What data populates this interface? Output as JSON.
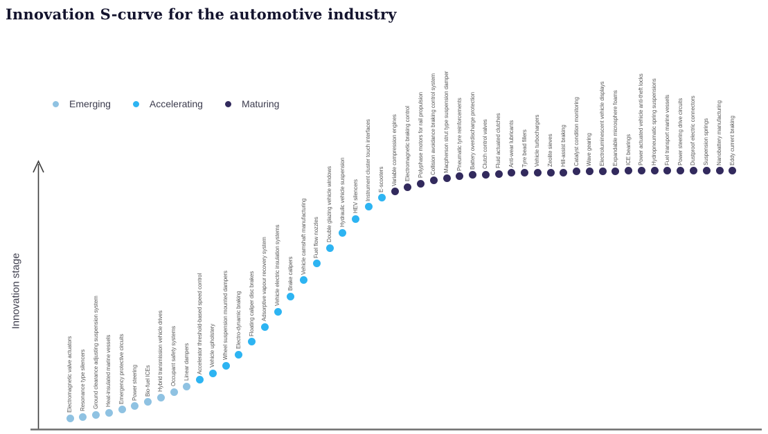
{
  "title": "Innovation S-curve for the automotive industry",
  "y_axis_label": "Innovation stage",
  "legend": {
    "items": [
      {
        "label": "Emerging",
        "color": "#8FC2E2"
      },
      {
        "label": "Accelerating",
        "color": "#2DB4F2"
      },
      {
        "label": "Maturing",
        "color": "#322A5D"
      }
    ]
  },
  "chart_data": {
    "type": "scatter",
    "title": "Innovation S-curve for the automotive industry",
    "xlabel": "",
    "ylabel": "Innovation stage",
    "grid": false,
    "legend_position": "top-left",
    "y_axis_ticks": "none (unlabeled axis with upward arrow)",
    "stages": [
      "Emerging",
      "Accelerating",
      "Maturing"
    ],
    "stage_colors": {
      "Emerging": "#8FC2E2",
      "Accelerating": "#2DB4F2",
      "Maturing": "#322A5D"
    },
    "note": "stage_value is the estimated innovation-stage height of each point, 0-100, read from the S-curve; points are ordered left to right",
    "points": [
      {
        "label": "Electromagnetic valve actuators",
        "stage": "Emerging",
        "stage_value": 4.2
      },
      {
        "label": "Resonance type silencers",
        "stage": "Emerging",
        "stage_value": 4.7
      },
      {
        "label": "Ground clearance adjusting suspension system",
        "stage": "Emerging",
        "stage_value": 5.5
      },
      {
        "label": "Heat-insulated marine vessels",
        "stage": "Emerging",
        "stage_value": 6.3
      },
      {
        "label": "Emergency protective circuits",
        "stage": "Emerging",
        "stage_value": 7.4
      },
      {
        "label": "Power steering",
        "stage": "Emerging",
        "stage_value": 8.7
      },
      {
        "label": "Bio-fuel ICEs",
        "stage": "Emerging",
        "stage_value": 10.3
      },
      {
        "label": "Hybrid transmission vehicle drives",
        "stage": "Emerging",
        "stage_value": 12.1
      },
      {
        "label": "Occupant safety systems",
        "stage": "Emerging",
        "stage_value": 14.2
      },
      {
        "label": "Linear dampers",
        "stage": "Emerging",
        "stage_value": 16.3
      },
      {
        "label": "Accelerator threshold-based speed control",
        "stage": "Accelerating",
        "stage_value": 18.7
      },
      {
        "label": "Vehicle upholstery",
        "stage": "Accelerating",
        "stage_value": 21.3
      },
      {
        "label": "Wheel suspension mounted dampers",
        "stage": "Accelerating",
        "stage_value": 24.2
      },
      {
        "label": "Electro-dynamic braking",
        "stage": "Accelerating",
        "stage_value": 28.4
      },
      {
        "label": "Floating caliper disc brakes",
        "stage": "Accelerating",
        "stage_value": 33.2
      },
      {
        "label": "Adsorptive vapour recovery system",
        "stage": "Accelerating",
        "stage_value": 38.9
      },
      {
        "label": "Vehicle electric insulation systems",
        "stage": "Accelerating",
        "stage_value": 44.7
      },
      {
        "label": "Brake calipers",
        "stage": "Accelerating",
        "stage_value": 50.5
      },
      {
        "label": "Vehicle camshaft manufacturing",
        "stage": "Accelerating",
        "stage_value": 56.6
      },
      {
        "label": "Fuel flow nozzles",
        "stage": "Accelerating",
        "stage_value": 62.9
      },
      {
        "label": "Double glazing vehicle windows",
        "stage": "Accelerating",
        "stage_value": 68.9
      },
      {
        "label": "Hydraulic vehicle suspension",
        "stage": "Accelerating",
        "stage_value": 74.7
      },
      {
        "label": "HEV silencers",
        "stage": "Accelerating",
        "stage_value": 80.0
      },
      {
        "label": "Instrument cluster touch interfaces",
        "stage": "Accelerating",
        "stage_value": 84.5
      },
      {
        "label": "E-scooters",
        "stage": "Accelerating",
        "stage_value": 87.9
      },
      {
        "label": "Variable compression engines",
        "stage": "Maturing",
        "stage_value": 90.3
      },
      {
        "label": "Electromagnetic braking control",
        "stage": "Maturing",
        "stage_value": 92.1
      },
      {
        "label": "Polyphase motors for rail propulsion",
        "stage": "Maturing",
        "stage_value": 93.4
      },
      {
        "label": "Collision avoidance braking control system",
        "stage": "Maturing",
        "stage_value": 94.5
      },
      {
        "label": "Macpherson strut type suspension damper",
        "stage": "Maturing",
        "stage_value": 95.3
      },
      {
        "label": "Pneumatic tyre reinforcements",
        "stage": "Maturing",
        "stage_value": 96.1
      },
      {
        "label": "Battery overdischarge protection",
        "stage": "Maturing",
        "stage_value": 96.6
      },
      {
        "label": "Clutch control valves",
        "stage": "Maturing",
        "stage_value": 96.8
      },
      {
        "label": "Fluid actuated clutches",
        "stage": "Maturing",
        "stage_value": 97.1
      },
      {
        "label": "Anti-wear lubricants",
        "stage": "Maturing",
        "stage_value": 97.4
      },
      {
        "label": "Tyre bead fillers",
        "stage": "Maturing",
        "stage_value": 97.4
      },
      {
        "label": "Vehicle turbochargers",
        "stage": "Maturing",
        "stage_value": 97.6
      },
      {
        "label": "Zeolite sieves",
        "stage": "Maturing",
        "stage_value": 97.6
      },
      {
        "label": "Hill-assist braking",
        "stage": "Maturing",
        "stage_value": 97.6
      },
      {
        "label": "Catalyst condition monitoring",
        "stage": "Maturing",
        "stage_value": 97.9
      },
      {
        "label": "Wave gearing",
        "stage": "Maturing",
        "stage_value": 97.9
      },
      {
        "label": "Electroluminescent vehicle displays",
        "stage": "Maturing",
        "stage_value": 97.9
      },
      {
        "label": "Expandable microsphere foams",
        "stage": "Maturing",
        "stage_value": 97.9
      },
      {
        "label": "ICE bearings",
        "stage": "Maturing",
        "stage_value": 98.2
      },
      {
        "label": "Power actuated vehicle anti-theft locks",
        "stage": "Maturing",
        "stage_value": 98.2
      },
      {
        "label": "Hydropneumatic spring suspensions",
        "stage": "Maturing",
        "stage_value": 98.2
      },
      {
        "label": "Fuel transport marine vessels",
        "stage": "Maturing",
        "stage_value": 98.2
      },
      {
        "label": "Power steering drive circuits",
        "stage": "Maturing",
        "stage_value": 98.2
      },
      {
        "label": "Dustproof electric connectors",
        "stage": "Maturing",
        "stage_value": 98.2
      },
      {
        "label": "Suspension springs",
        "stage": "Maturing",
        "stage_value": 98.2
      },
      {
        "label": "Nanobattery manufacturing",
        "stage": "Maturing",
        "stage_value": 98.2
      },
      {
        "label": "Eddy current braking",
        "stage": "Maturing",
        "stage_value": 98.2
      }
    ]
  }
}
